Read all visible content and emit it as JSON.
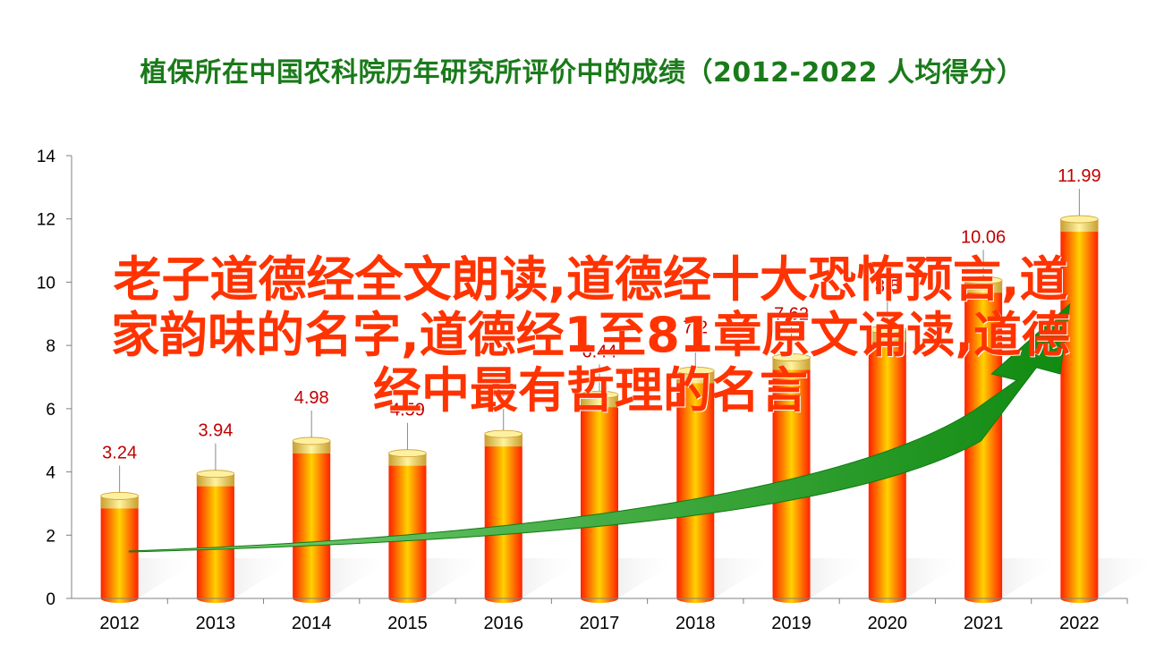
{
  "chart_data": {
    "type": "bar",
    "title": "植保所在中国农科院历年研究所评价中的成绩（2012-2022  人均得分）",
    "categories": [
      "2012",
      "2013",
      "2014",
      "2015",
      "2016",
      "2017",
      "2018",
      "2019",
      "2020",
      "2021",
      "2022"
    ],
    "values": [
      3.24,
      3.94,
      4.98,
      4.59,
      5.2,
      6.44,
      7.2,
      7.62,
      8.5,
      10.06,
      11.99
    ],
    "value_labels": [
      "3.24",
      "3.94",
      "4.98",
      "4.59",
      "5.2",
      "6.44",
      "7.2",
      "7.62",
      "8.5",
      "10.06",
      "11.99"
    ],
    "yticks": [
      "0",
      "2",
      "4",
      "6",
      "8",
      "10",
      "12",
      "14"
    ],
    "ylim": [
      0,
      14
    ],
    "xlabel": "",
    "ylabel": "",
    "grid": false,
    "legend": "none",
    "trend_arrow": true,
    "colors": {
      "bar_edge": "#ff2000",
      "bar_center": "#ffd200",
      "cap": "#f0d060",
      "arrow": "#1a9a1a",
      "label": "#c00000",
      "title": "#1a7a1a"
    }
  },
  "overlay_text": "老子道德经全文朗读,道德经十大恐怖预言,道家韵味的名字,道德经1至81章原文诵读,道德经中最有哲理的名言"
}
